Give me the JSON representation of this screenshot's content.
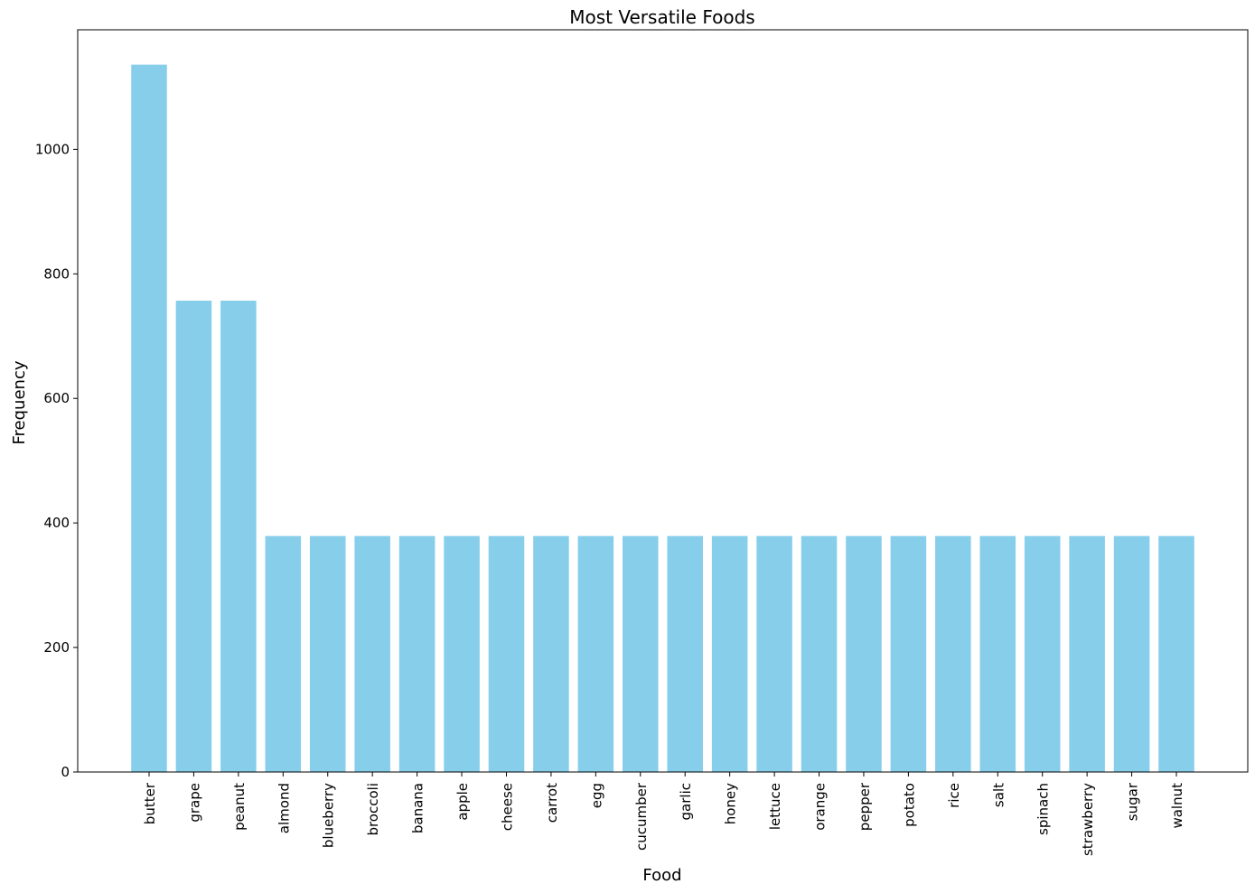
{
  "chart_data": {
    "type": "bar",
    "title": "Most Versatile Foods",
    "xlabel": "Food",
    "ylabel": "Frequency",
    "categories": [
      "butter",
      "grape",
      "peanut",
      "almond",
      "blueberry",
      "broccoli",
      "banana",
      "apple",
      "cheese",
      "carrot",
      "egg",
      "cucumber",
      "garlic",
      "honey",
      "lettuce",
      "orange",
      "pepper",
      "potato",
      "rice",
      "salt",
      "spinach",
      "strawberry",
      "sugar",
      "walnut"
    ],
    "values": [
      1136,
      757,
      757,
      379,
      379,
      379,
      379,
      379,
      379,
      379,
      379,
      379,
      379,
      379,
      379,
      379,
      379,
      379,
      379,
      379,
      379,
      379,
      379,
      379
    ],
    "yticks": [
      0,
      200,
      400,
      600,
      800,
      1000
    ],
    "ylim": [
      0,
      1192
    ],
    "grid": false,
    "colors": {
      "bar": "#87CEEB",
      "axis": "#000000"
    }
  }
}
